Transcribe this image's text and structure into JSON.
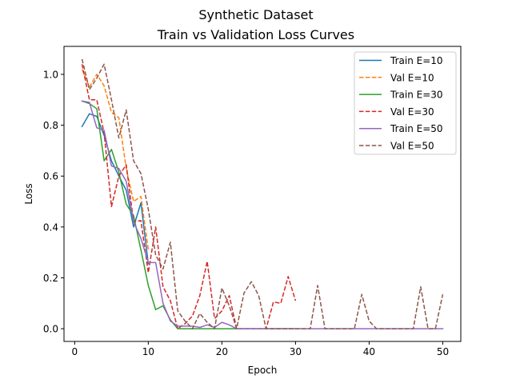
{
  "chart_data": {
    "type": "line",
    "title": "Synthetic Dataset",
    "subtitle": "Train vs Validation Loss Curves",
    "xlabel": "Epoch",
    "ylabel": "Loss",
    "xlim": [
      -1.45,
      52.45
    ],
    "ylim": [
      -0.05,
      1.11
    ],
    "xticks": [
      0,
      10,
      20,
      30,
      40,
      50
    ],
    "yticks": [
      0.0,
      0.2,
      0.4,
      0.6,
      0.8,
      1.0
    ],
    "xtick_labels": [
      "0",
      "10",
      "20",
      "30",
      "40",
      "50"
    ],
    "ytick_labels": [
      "0.0",
      "0.2",
      "0.4",
      "0.6",
      "0.8",
      "1.0"
    ],
    "grid": false,
    "legend_position": "top-right",
    "series": [
      {
        "name": "Train E=10",
        "color": "#1f77b4",
        "dash": "solid",
        "x": [
          1,
          2,
          3,
          4,
          5,
          6,
          7,
          8,
          9,
          10
        ],
        "y": [
          0.795,
          0.845,
          0.835,
          0.76,
          0.66,
          0.6,
          0.545,
          0.4,
          0.495,
          0.255
        ]
      },
      {
        "name": "Val E=10",
        "color": "#ff7f0e",
        "dash": "dashed",
        "x": [
          1,
          2,
          3,
          4,
          5,
          6,
          7,
          8,
          9,
          10
        ],
        "y": [
          1.02,
          0.95,
          1.0,
          0.955,
          0.85,
          0.83,
          0.63,
          0.5,
          0.52,
          0.31
        ]
      },
      {
        "name": "Train E=30",
        "color": "#2ca02c",
        "dash": "solid",
        "x": [
          1,
          2,
          3,
          4,
          5,
          6,
          7,
          8,
          9,
          10,
          11,
          12,
          13,
          14,
          15,
          16,
          17,
          18,
          19,
          20,
          21,
          22,
          23,
          24,
          25,
          26,
          27,
          28,
          29,
          30
        ],
        "y": [
          0.895,
          0.885,
          0.865,
          0.66,
          0.705,
          0.615,
          0.49,
          0.445,
          0.31,
          0.17,
          0.075,
          0.09,
          0.035,
          0.0,
          0.0,
          0.0,
          0.0,
          0.0,
          0.0,
          0.0,
          0.0,
          0.0,
          0.0,
          0.0,
          0.0,
          0.0,
          0.0,
          0.0,
          0.0,
          0.0
        ]
      },
      {
        "name": "Val E=30",
        "color": "#d62728",
        "dash": "dashed",
        "x": [
          1,
          2,
          3,
          4,
          5,
          6,
          7,
          8,
          9,
          10,
          11,
          12,
          13,
          14,
          15,
          16,
          17,
          18,
          19,
          20,
          21,
          22,
          23,
          24,
          25,
          26,
          27,
          28,
          29,
          30
        ],
        "y": [
          1.04,
          0.9,
          0.9,
          0.77,
          0.48,
          0.6,
          0.645,
          0.42,
          0.425,
          0.22,
          0.4,
          0.165,
          0.11,
          0.0,
          0.02,
          0.05,
          0.13,
          0.265,
          0.04,
          0.07,
          0.13,
          0.0,
          0.0,
          0.0,
          0.0,
          0.0,
          0.105,
          0.1,
          0.205,
          0.11
        ]
      },
      {
        "name": "Train E=50",
        "color": "#9467bd",
        "dash": "solid",
        "x": [
          1,
          2,
          3,
          4,
          5,
          6,
          7,
          8,
          9,
          10,
          11,
          12,
          13,
          14,
          15,
          16,
          17,
          18,
          19,
          20,
          21,
          22,
          23,
          24,
          25,
          26,
          27,
          28,
          29,
          30,
          31,
          32,
          33,
          34,
          35,
          36,
          37,
          38,
          39,
          40,
          41,
          42,
          43,
          44,
          45,
          46,
          47,
          48,
          49,
          50
        ],
        "y": [
          0.895,
          0.89,
          0.79,
          0.78,
          0.64,
          0.63,
          0.58,
          0.42,
          0.355,
          0.26,
          0.26,
          0.1,
          0.03,
          0.01,
          0.01,
          0.01,
          0.005,
          0.015,
          0.005,
          0.025,
          0.015,
          0.0,
          0.0,
          0.0,
          0.0,
          0.0,
          0.0,
          0.0,
          0.0,
          0.0,
          0.0,
          0.0,
          0.0,
          0.0,
          0.0,
          0.0,
          0.0,
          0.0,
          0.0,
          0.0,
          0.0,
          0.0,
          0.0,
          0.0,
          0.0,
          0.0,
          0.0,
          0.0,
          0.0,
          0.0
        ]
      },
      {
        "name": "Val E=50",
        "color": "#8c564b",
        "dash": "dashed",
        "x": [
          1,
          2,
          3,
          4,
          5,
          6,
          7,
          8,
          9,
          10,
          11,
          12,
          13,
          14,
          15,
          16,
          17,
          18,
          19,
          20,
          21,
          22,
          23,
          24,
          25,
          26,
          27,
          28,
          29,
          30,
          31,
          32,
          33,
          34,
          35,
          36,
          37,
          38,
          39,
          40,
          41,
          42,
          43,
          44,
          45,
          46,
          47,
          48,
          49,
          50
        ],
        "y": [
          1.06,
          0.94,
          0.985,
          1.04,
          0.9,
          0.75,
          0.86,
          0.66,
          0.61,
          0.47,
          0.29,
          0.235,
          0.34,
          0.07,
          0.03,
          0.0,
          0.06,
          0.025,
          0.0,
          0.16,
          0.09,
          0.0,
          0.14,
          0.185,
          0.13,
          0.0,
          0.0,
          0.0,
          0.0,
          0.0,
          0.0,
          0.0,
          0.17,
          0.0,
          0.0,
          0.0,
          0.0,
          0.0,
          0.135,
          0.03,
          0.0,
          0.0,
          0.0,
          0.0,
          0.0,
          0.0,
          0.165,
          0.0,
          0.0,
          0.135
        ]
      }
    ]
  }
}
